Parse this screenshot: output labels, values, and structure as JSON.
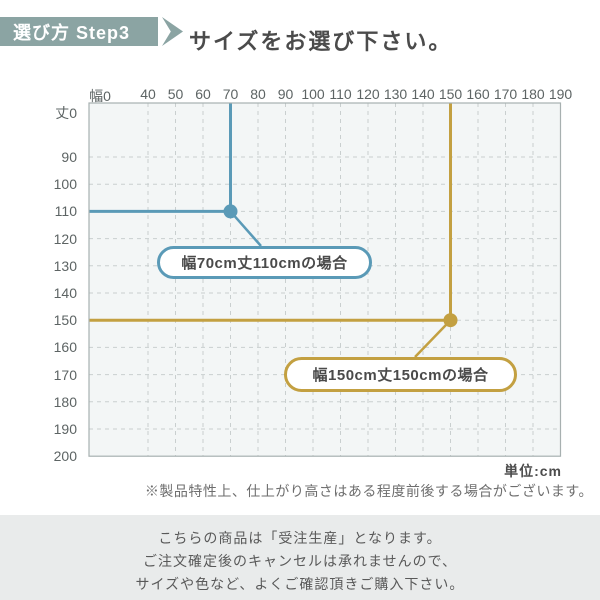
{
  "header": {
    "step_label": "選び方 Step3",
    "title": "サイズをお選び下さい。"
  },
  "chart_data": {
    "type": "scatter",
    "title": "size selection grid",
    "x_axis": {
      "label": "幅",
      "unit": "cm",
      "ticks": [
        0,
        40,
        50,
        60,
        70,
        80,
        90,
        100,
        110,
        120,
        130,
        140,
        150,
        160,
        170,
        180,
        190
      ]
    },
    "y_axis": {
      "label": "丈",
      "unit": "cm",
      "ticks": [
        0,
        90,
        100,
        110,
        120,
        130,
        140,
        150,
        160,
        170,
        180,
        190,
        200
      ]
    },
    "grid": true,
    "points": [
      {
        "width_cm": 70,
        "height_cm": 110,
        "callout_label": "幅70cm丈110cmの場合",
        "color": "#5a9ab7"
      },
      {
        "width_cm": 150,
        "height_cm": 150,
        "callout_label": "幅150cm丈150cmの場合",
        "color": "#c3a041"
      }
    ],
    "unit_label": "単位:cm"
  },
  "notes": {
    "tolerance": "※製品特性上、仕上がり高さはある程度前後する場合がございます。"
  },
  "footer": {
    "lines": [
      "こちらの商品は「受注生産」となります。",
      "ご注文確定後のキャンセルは承れませんので、",
      "サイズや色など、よくご確認頂きご購入下さい。"
    ]
  },
  "colors": {
    "badge_bg": "#8ba4a3",
    "accent_blue": "#5a9ab7",
    "accent_gold": "#c3a041",
    "grid_bg": "#f3f6f6",
    "grid_dash": "#c9cfcf",
    "grid_border": "#a7b0b0",
    "footer_bg": "#e9ebeb"
  }
}
